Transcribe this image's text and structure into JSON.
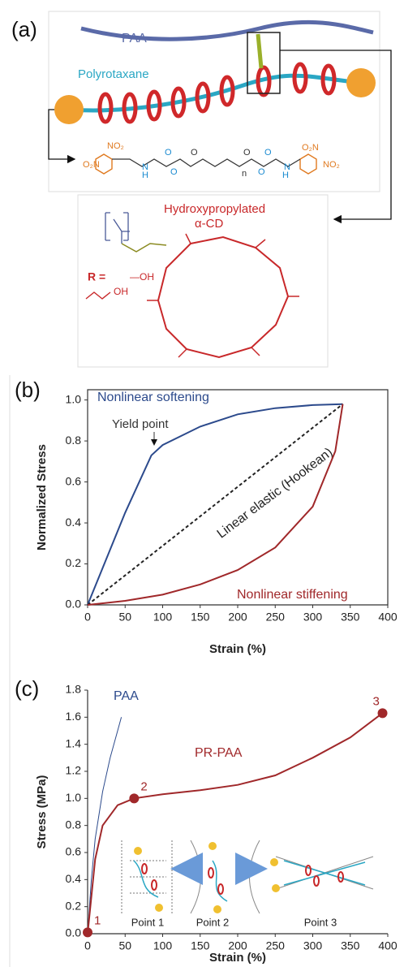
{
  "panel_a": {
    "label": "(a)",
    "paa": "PAA",
    "polyrotaxane": "Polyrotaxane",
    "formula_texts": [
      "O₂N",
      "NO₂",
      "H",
      "N",
      "O",
      "O",
      "O",
      "O",
      "n",
      "O",
      "O",
      "H",
      "N",
      "O₂N",
      "NO₂"
    ],
    "cd_title": "Hydroxypropylated",
    "cd_name": "α-CD",
    "r_eq": "R =",
    "r_oh": "—OH",
    "r_oh2": "OH"
  },
  "chart_data": [
    {
      "type": "line",
      "panel_label": "(b)",
      "xlabel": "Strain (%)",
      "ylabel": "Normalized Stress",
      "xlim": [
        0,
        400
      ],
      "ylim": [
        0,
        1.05
      ],
      "xticks": [
        0,
        50,
        100,
        150,
        200,
        250,
        300,
        350,
        400
      ],
      "yticks": [
        {
          "value": 0,
          "label": "0.0"
        },
        0.2,
        0.4,
        0.6,
        0.8,
        {
          "value": 1,
          "label": "1.0"
        }
      ],
      "annotation": "Yield point",
      "series": [
        {
          "name": "Nonlinear softening",
          "color": "#2c4a8c",
          "line_style": "solid",
          "x": [
            0,
            20,
            50,
            85,
            100,
            150,
            200,
            250,
            300,
            340
          ],
          "values": [
            0,
            0.18,
            0.45,
            0.73,
            0.78,
            0.87,
            0.93,
            0.96,
            0.975,
            0.98
          ]
        },
        {
          "name": "Linear elastic (Hookean)",
          "color": "#222222",
          "line_style": "dashed",
          "x": [
            0,
            340
          ],
          "values": [
            0,
            0.98
          ]
        },
        {
          "name": "Nonlinear stiffening",
          "color": "#a0282a",
          "line_style": "solid",
          "x": [
            0,
            50,
            100,
            150,
            200,
            250,
            300,
            330,
            340
          ],
          "values": [
            0,
            0.02,
            0.05,
            0.1,
            0.17,
            0.28,
            0.48,
            0.75,
            0.98
          ]
        }
      ]
    },
    {
      "type": "line",
      "panel_label": "(c)",
      "xlabel": "Strain (%)",
      "ylabel": "Stress (MPa)",
      "xlim": [
        0,
        400
      ],
      "ylim": [
        0,
        1.8
      ],
      "xticks": [
        0,
        50,
        100,
        150,
        200,
        250,
        300,
        350,
        400
      ],
      "yticks": [
        {
          "value": 0,
          "label": "0.0"
        },
        0.2,
        0.4,
        0.6,
        0.8,
        {
          "value": 1,
          "label": "1.0"
        },
        1.2,
        1.4,
        1.6,
        1.8
      ],
      "series": [
        {
          "name": "PAA",
          "color": "#2c4a8c",
          "line_style": "solid",
          "x": [
            0,
            5,
            10,
            20,
            30,
            40,
            45
          ],
          "values": [
            0,
            0.4,
            0.7,
            1.05,
            1.3,
            1.5,
            1.6
          ]
        },
        {
          "name": "PR-PAA",
          "color": "#a0282a",
          "line_style": "solid",
          "x": [
            0,
            10,
            20,
            40,
            62,
            100,
            150,
            200,
            250,
            300,
            350,
            393
          ],
          "values": [
            0,
            0.55,
            0.8,
            0.95,
            1.0,
            1.03,
            1.06,
            1.1,
            1.17,
            1.3,
            1.45,
            1.63
          ]
        }
      ],
      "points": {
        "color": "#a0282a",
        "x": [
          0,
          62,
          393
        ],
        "values": [
          0.01,
          1.0,
          1.63
        ],
        "labels": [
          "1",
          "2",
          "3"
        ]
      },
      "insets": [
        "Point 1",
        "Point 2",
        "Point 3"
      ]
    }
  ]
}
